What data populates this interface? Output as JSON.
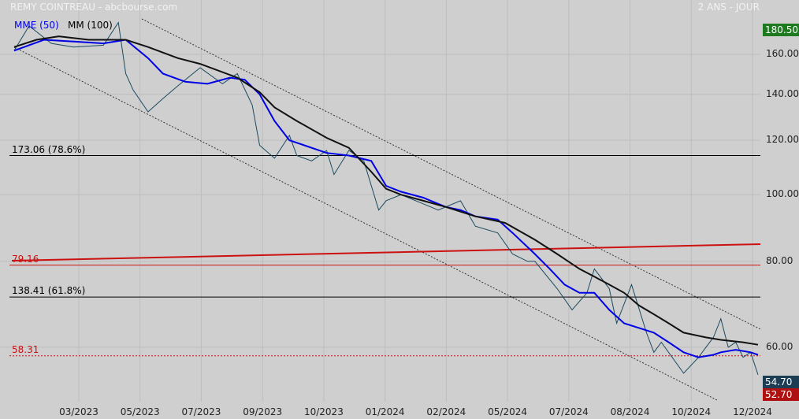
{
  "header": {
    "title": "REMY COINTREAU - abcbourse.com",
    "period": "2 ANS - JOUR"
  },
  "legend": {
    "ema": "MME (50)",
    "sma": "MM (100)"
  },
  "colors": {
    "ema": "#0000e6",
    "sma": "#111111",
    "price": "#1a4a60",
    "resistance": "#cc1111",
    "tag_top": "#1e7a1e",
    "tag_last": "#1d3d55",
    "tag_low": "#b01010"
  },
  "levels": [
    {
      "label": "173.06  (78.6%)",
      "price": 114,
      "color": "#000000"
    },
    {
      "label": "79.16",
      "price": 79,
      "color": "#cc1111"
    },
    {
      "label": "138.41  (61.8%)",
      "price": 71,
      "color": "#000000"
    },
    {
      "label": "58.31",
      "price": 58.3,
      "color": "#cc1111",
      "dashed": true
    }
  ],
  "tags": {
    "top": "180.50",
    "last": "54.70",
    "low": "52.70"
  },
  "chart_data": {
    "type": "line",
    "scale": "log",
    "ylim": [
      50,
      185
    ],
    "yticks": [
      "160.00",
      "140.00",
      "120.00",
      "100.00",
      "80.00",
      "60.00"
    ],
    "ytick_values": [
      160,
      140,
      120,
      100,
      80,
      60
    ],
    "xticks": [
      "03/2023",
      "05/2023",
      "07/2023",
      "09/2023",
      "10/2023",
      "01/2024",
      "02/2024",
      "05/2024",
      "07/2024",
      "08/2024",
      "10/2024",
      "12/2024"
    ],
    "series": [
      {
        "name": "Price",
        "x": [
          0,
          0.02,
          0.05,
          0.08,
          0.12,
          0.14,
          0.15,
          0.16,
          0.18,
          0.2,
          0.22,
          0.25,
          0.28,
          0.3,
          0.32,
          0.33,
          0.35,
          0.37,
          0.38,
          0.4,
          0.42,
          0.43,
          0.45,
          0.47,
          0.49,
          0.5,
          0.52,
          0.55,
          0.57,
          0.6,
          0.62,
          0.65,
          0.67,
          0.69,
          0.7,
          0.73,
          0.75,
          0.77,
          0.78,
          0.8,
          0.81,
          0.83,
          0.85,
          0.86,
          0.87,
          0.9,
          0.92,
          0.93,
          0.94,
          0.95,
          0.96,
          0.97,
          0.98,
          0.99,
          1.0
        ],
        "values": [
          162,
          176,
          166,
          164,
          165,
          178,
          150,
          142,
          132,
          138,
          144,
          153,
          145,
          150,
          135,
          118,
          113,
          122,
          114,
          112,
          116,
          107,
          116,
          112,
          95,
          98,
          100,
          97,
          95,
          98,
          90,
          88,
          82,
          80,
          80,
          73,
          68,
          72,
          78,
          73,
          65,
          74,
          63,
          59,
          61,
          55,
          58,
          60,
          62,
          66,
          60,
          61,
          58,
          59,
          54.7
        ]
      },
      {
        "name": "MME (50)",
        "x": [
          0,
          0.04,
          0.08,
          0.12,
          0.15,
          0.18,
          0.2,
          0.23,
          0.26,
          0.29,
          0.31,
          0.33,
          0.35,
          0.37,
          0.39,
          0.42,
          0.45,
          0.48,
          0.5,
          0.52,
          0.55,
          0.58,
          0.6,
          0.62,
          0.65,
          0.67,
          0.7,
          0.72,
          0.74,
          0.76,
          0.78,
          0.8,
          0.82,
          0.84,
          0.86,
          0.88,
          0.9,
          0.92,
          0.94,
          0.95,
          0.97,
          0.99,
          1.0
        ],
        "values": [
          162,
          168,
          167,
          166,
          168,
          158,
          150,
          146,
          145,
          148,
          147,
          140,
          128,
          120,
          118,
          115,
          114,
          112,
          103,
          101,
          99,
          96,
          95,
          93,
          92,
          88,
          82,
          78,
          74,
          72,
          72,
          68,
          65,
          64,
          63,
          61,
          59,
          58,
          58.5,
          59,
          59.5,
          59,
          58.5
        ]
      },
      {
        "name": "MM (100)",
        "x": [
          0,
          0.03,
          0.06,
          0.1,
          0.15,
          0.18,
          0.22,
          0.25,
          0.3,
          0.33,
          0.35,
          0.38,
          0.42,
          0.45,
          0.48,
          0.5,
          0.52,
          0.55,
          0.58,
          0.62,
          0.66,
          0.7,
          0.73,
          0.76,
          0.78,
          0.8,
          0.82,
          0.84,
          0.86,
          0.88,
          0.9,
          0.93,
          0.95,
          0.98,
          1.0
        ],
        "values": [
          164,
          168,
          170,
          168,
          168,
          164,
          158,
          155,
          148,
          141,
          134,
          128,
          121,
          117,
          108,
          102,
          100,
          98,
          96,
          93,
          91,
          86,
          82,
          78,
          76,
          74,
          72,
          69,
          67,
          65,
          63,
          62,
          61.5,
          61,
          60.5
        ]
      }
    ]
  }
}
